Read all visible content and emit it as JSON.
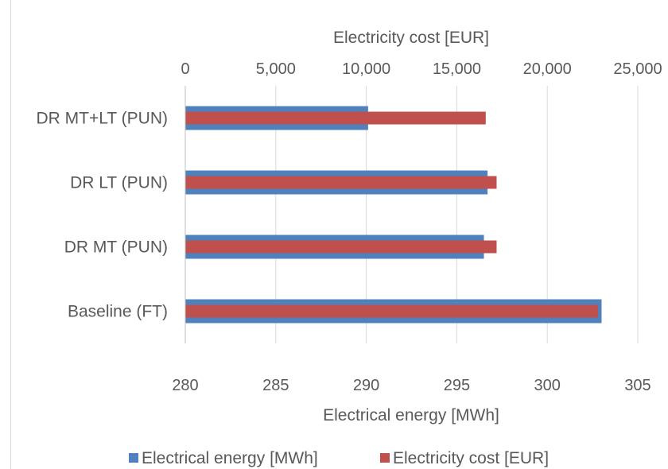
{
  "chart_data": {
    "type": "bar",
    "orientation": "horizontal",
    "categories": [
      "Baseline (FT)",
      "DR MT (PUN)",
      "DR LT (PUN)",
      "DR MT+LT (PUN)"
    ],
    "series": [
      {
        "name": "Electrical energy [MWh]",
        "axis": "bottom",
        "color": "#4f81bd",
        "values": [
          303.0,
          296.5,
          296.7,
          290.1
        ]
      },
      {
        "name": "Electricity cost [EUR]",
        "axis": "top",
        "color": "#c0504d",
        "values": [
          22800,
          17200,
          17200,
          16600
        ]
      }
    ],
    "x_bottom": {
      "label": "Electrical energy [MWh]",
      "range": [
        280,
        305
      ],
      "ticks": [
        "280",
        "285",
        "290",
        "295",
        "300",
        "305"
      ]
    },
    "x_top": {
      "label": "Electricity cost [EUR]",
      "range": [
        0,
        25000
      ],
      "ticks": [
        "0",
        "5,000",
        "10,000",
        "15,000",
        "20,000",
        "25,000"
      ]
    },
    "grid": true,
    "legend": "bottom"
  }
}
